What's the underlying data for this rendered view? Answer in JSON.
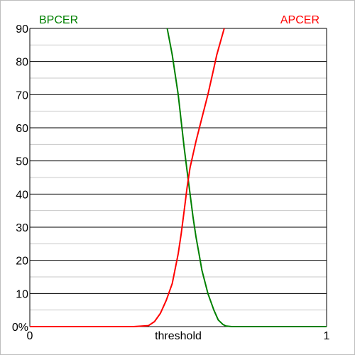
{
  "chart_data": {
    "type": "line",
    "xlabel": "threshold",
    "x_ticks": [
      "0",
      "1"
    ],
    "y_ticks": [
      "0%",
      "10",
      "20",
      "30",
      "40",
      "50",
      "60",
      "70",
      "80",
      "90"
    ],
    "xlim": [
      0,
      1
    ],
    "ylim": [
      0,
      90
    ],
    "grid": "horizontal major and minor lines",
    "legend_placement": "top-left and top-right labels",
    "series": [
      {
        "name": "BPCER",
        "color": "#008000",
        "x": [
          0.463,
          0.48,
          0.5,
          0.51,
          0.52,
          0.53,
          0.54,
          0.55,
          0.56,
          0.57,
          0.58,
          0.6,
          0.62,
          0.635,
          0.65,
          0.66,
          0.68,
          0.7,
          0.75,
          1.0
        ],
        "y": [
          90,
          82,
          70,
          62,
          54,
          47,
          40,
          33,
          27,
          22,
          17,
          10,
          5,
          2,
          0.7,
          0.2,
          0,
          0,
          0,
          0
        ]
      },
      {
        "name": "APCER",
        "color": "#ff0000",
        "x": [
          0.0,
          0.35,
          0.4,
          0.42,
          0.44,
          0.46,
          0.48,
          0.5,
          0.51,
          0.52,
          0.53,
          0.54,
          0.56,
          0.58,
          0.6,
          0.62,
          0.63,
          0.655
        ],
        "y": [
          0,
          0,
          0.3,
          1.5,
          4,
          8,
          13,
          22,
          28,
          35,
          42,
          48,
          56,
          63,
          70,
          78,
          82,
          90
        ]
      }
    ]
  }
}
